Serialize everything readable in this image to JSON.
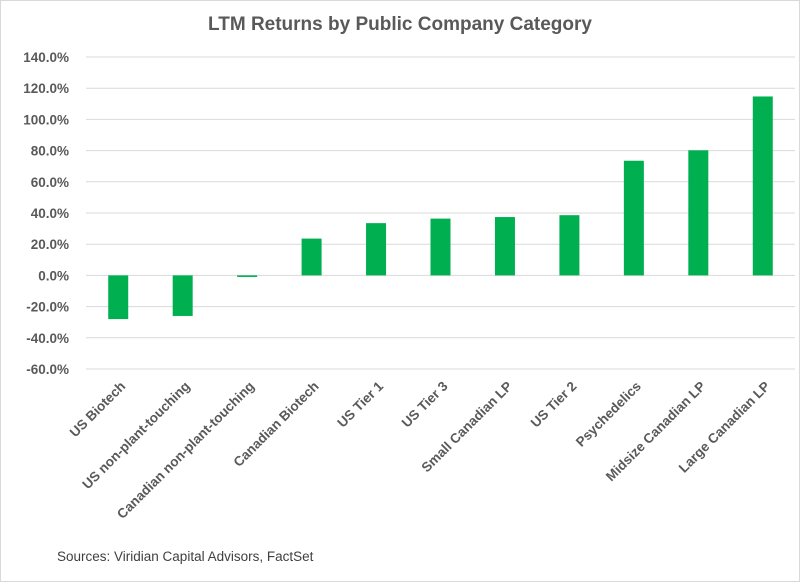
{
  "chart_data": {
    "type": "bar",
    "title": "LTM Returns by Public Company Category",
    "xlabel": "",
    "ylabel": "",
    "ylim": [
      -60,
      140
    ],
    "yticks": [
      140,
      120,
      100,
      80,
      60,
      40,
      20,
      0,
      -20,
      -40,
      -60
    ],
    "ytick_labels": [
      "140.0%",
      "120.0%",
      "100.0%",
      "80.0%",
      "60.0%",
      "40.0%",
      "20.0%",
      "0.0%",
      "-20.0%",
      "-40.0%",
      "-60.0%"
    ],
    "grid": true,
    "legend": "none",
    "categories": [
      "US Biotech",
      "US non-plant-touching",
      "Canadian non-plant-touching",
      "Canadian Biotech",
      "US Tier 1",
      "US Tier 3",
      "Small Canadian LP",
      "US Tier 2",
      "Psychedelics",
      "Midsize Canadian LP",
      "Large Canadian LP"
    ],
    "values": [
      -28.0,
      -26.0,
      -1.0,
      23.6,
      33.5,
      36.4,
      37.4,
      38.6,
      73.5,
      80.2,
      114.7
    ],
    "bar_color": "#00b050",
    "source": "Sources: Viridian Capital Advisors, FactSet"
  }
}
